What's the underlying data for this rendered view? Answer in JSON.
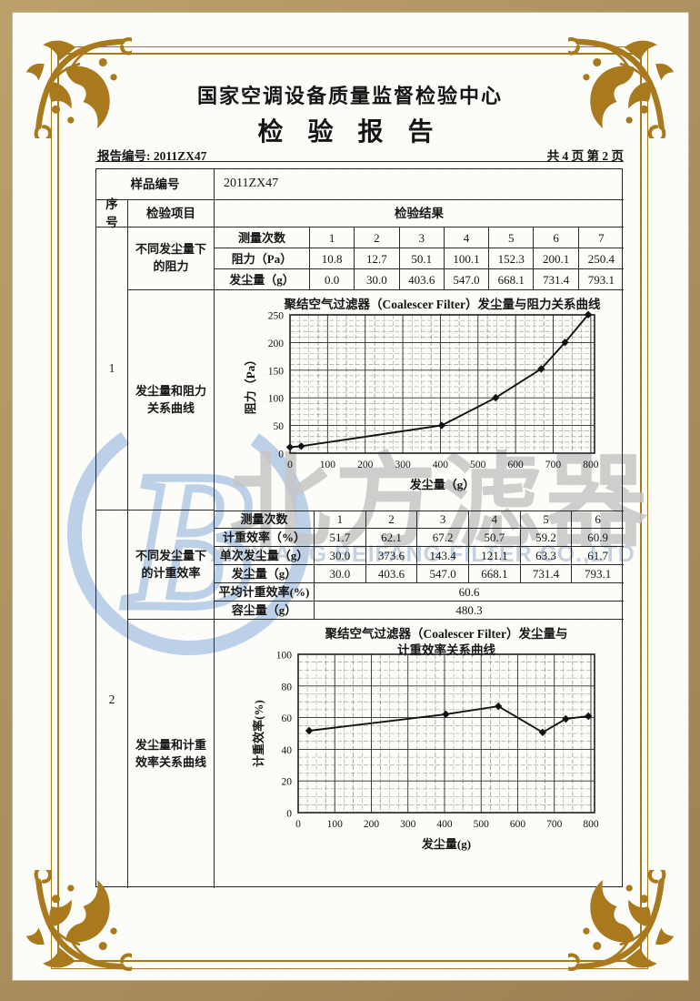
{
  "page": {
    "org_name": "国家空调设备质量监督检验中心",
    "doc_title": "检 验 报 告",
    "report_no": "报告编号: 2011ZX47",
    "page_info": "共 4 页 第 2 页"
  },
  "table": {
    "sample_label": "样品编号",
    "sample_value": "2011ZX47",
    "seq_header": "序号",
    "item_header": "检验项目",
    "result_header": "检验结果",
    "seq1": "1",
    "seq2": "2",
    "item_resistance": "不同发尘量下的阻力",
    "item_resistance_curve": "发尘量和阻力关系曲线",
    "item_efficiency": "不同发尘量下的计重效率",
    "item_efficiency_curve": "发尘量和计重效率关系曲线"
  },
  "resistance_table": {
    "row_header": "测量次数",
    "cols": [
      "1",
      "2",
      "3",
      "4",
      "5",
      "6",
      "7"
    ],
    "rows": [
      {
        "label": "阻力（Pa）",
        "values": [
          "10.8",
          "12.7",
          "50.1",
          "100.1",
          "152.3",
          "200.1",
          "250.4"
        ]
      },
      {
        "label": "发尘量（g）",
        "values": [
          "0.0",
          "30.0",
          "403.6",
          "547.0",
          "668.1",
          "731.4",
          "793.1"
        ]
      }
    ]
  },
  "efficiency_table": {
    "row_header": "测量次数",
    "cols": [
      "1",
      "2",
      "3",
      "4",
      "5",
      "6"
    ],
    "rows": [
      {
        "label": "计重效率（%）",
        "values": [
          "51.7",
          "62.1",
          "67.2",
          "50.7",
          "59.2",
          "60.9"
        ]
      },
      {
        "label": "单次发尘量（g）",
        "values": [
          "30.0",
          "373.6",
          "143.4",
          "121.1",
          "63.3",
          "61.7"
        ]
      },
      {
        "label": "发尘量（g）",
        "values": [
          "30.0",
          "403.6",
          "547.0",
          "668.1",
          "731.4",
          "793.1"
        ]
      }
    ],
    "avg_label": "平均计重效率(%)",
    "avg_value": "60.6",
    "capacity_label": "容尘量（g）",
    "capacity_value": "480.3"
  },
  "watermark": {
    "logo_letter": "B",
    "cn_text": "北方滤器",
    "en_text": "XINXIANG BEIFANG FILTER CO.,LTD"
  },
  "chart_data": [
    {
      "type": "line",
      "title_lines": [
        "聚结空气过滤器（Coalescer Filter）发尘量与阻力关系曲线"
      ],
      "xlabel": "发尘量（g）",
      "ylabel": "阻力（Pa）",
      "x": [
        0,
        30,
        403.6,
        547.0,
        668.1,
        731.4,
        793.1
      ],
      "y": [
        10.8,
        12.7,
        50.1,
        100.1,
        152.3,
        200.1,
        250.4
      ],
      "xlim": [
        0,
        810
      ],
      "ylim": [
        0,
        250
      ],
      "xticks": [
        0,
        100,
        200,
        300,
        400,
        500,
        600,
        700,
        800
      ],
      "yticks": [
        0,
        50,
        100,
        150,
        200,
        250
      ],
      "x_minor": 25,
      "y_minor": 10,
      "marker": "diamond",
      "grid": true,
      "legend": "none"
    },
    {
      "type": "line",
      "title_lines": [
        "聚结空气过滤器（Coalescer Filter）发尘量与",
        "计重效率关系曲线"
      ],
      "xlabel": "发尘量(g)",
      "ylabel": "计重效率(%)",
      "x": [
        30,
        403.6,
        547.0,
        668.1,
        731.4,
        793.1
      ],
      "y": [
        51.7,
        62.1,
        67.2,
        50.7,
        59.2,
        60.9
      ],
      "xlim": [
        0,
        810
      ],
      "ylim": [
        0,
        100
      ],
      "xticks": [
        0,
        100,
        200,
        300,
        400,
        500,
        600,
        700,
        800
      ],
      "yticks": [
        0,
        20,
        40,
        60,
        80,
        100
      ],
      "x_minor": 25,
      "y_minor": 5,
      "marker": "diamond",
      "grid": true,
      "legend": "none"
    }
  ],
  "colors": {
    "frame_gold": "#a8791d",
    "bezel_tan": "#ad9261",
    "ink": "#1c1c1c",
    "watermark_blue": "#bcd1e8",
    "watermark_gray": "#c6c6c6"
  }
}
